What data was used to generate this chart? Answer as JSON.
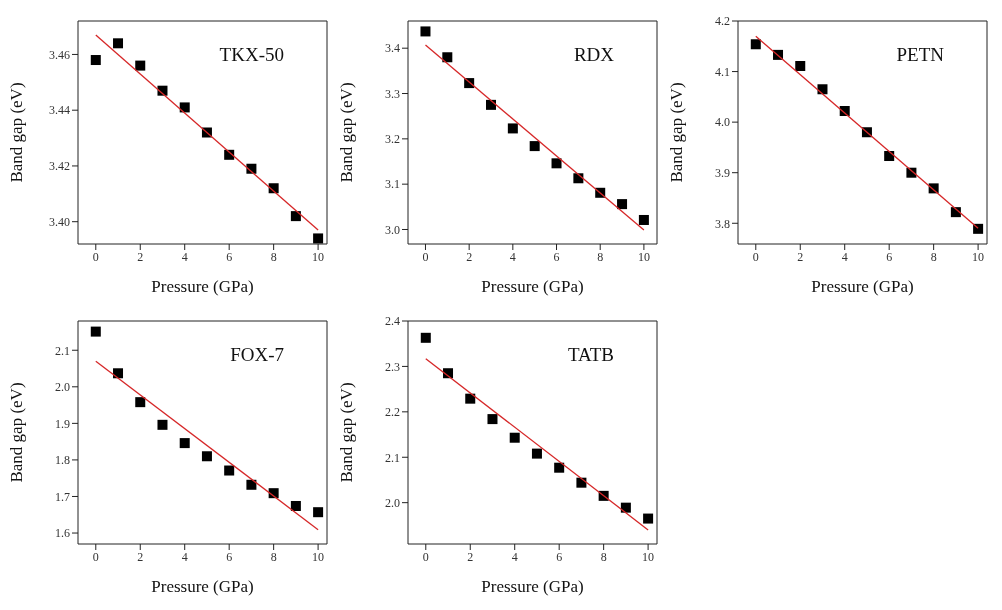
{
  "chart_data": [
    {
      "type": "scatter",
      "title": "TKX-50",
      "xlabel": "Pressure (GPa)",
      "ylabel": "Band gap (eV)",
      "xlim": [
        -0.8,
        10.4
      ],
      "xticks": [
        0,
        2,
        4,
        6,
        8,
        10
      ],
      "ylim": [
        3.392,
        3.472
      ],
      "yticks": [
        {
          "value": 3.4,
          "label": "3.40"
        },
        {
          "value": 3.42,
          "label": "3.42"
        },
        {
          "value": 3.44,
          "label": "3.44"
        },
        {
          "value": 3.46,
          "label": "3.46"
        }
      ],
      "series": [
        {
          "marker": "square",
          "color": "#000000",
          "x": [
            0,
            1,
            2,
            3,
            4,
            5,
            6,
            7,
            8,
            9,
            10
          ],
          "values": [
            3.458,
            3.464,
            3.456,
            3.447,
            3.441,
            3.432,
            3.424,
            3.419,
            3.412,
            3.402,
            3.394
          ]
        },
        {
          "type": "line",
          "color": "#d62728",
          "x": [
            0,
            10
          ],
          "values": [
            3.467,
            3.397
          ]
        }
      ]
    },
    {
      "type": "scatter",
      "title": "RDX",
      "xlabel": "Pressure (GPa)",
      "ylabel": "Band gap (eV)",
      "xlim": [
        -0.8,
        10.6
      ],
      "xticks": [
        0,
        2,
        4,
        6,
        8,
        10
      ],
      "ylim": [
        2.968,
        3.46
      ],
      "yticks": [
        {
          "value": 3.0,
          "label": "3.0"
        },
        {
          "value": 3.1,
          "label": "3.1"
        },
        {
          "value": 3.2,
          "label": "3.2"
        },
        {
          "value": 3.3,
          "label": "3.3"
        },
        {
          "value": 3.4,
          "label": "3.4"
        }
      ],
      "series": [
        {
          "marker": "square",
          "color": "#000000",
          "x": [
            0,
            1,
            2,
            3,
            4,
            5,
            6,
            7,
            8,
            9,
            10
          ],
          "values": [
            3.437,
            3.38,
            3.323,
            3.275,
            3.223,
            3.184,
            3.146,
            3.113,
            3.081,
            3.056,
            3.021
          ]
        },
        {
          "type": "line",
          "color": "#d62728",
          "x": [
            0,
            10
          ],
          "values": [
            3.407,
            2.999
          ]
        }
      ]
    },
    {
      "type": "scatter",
      "title": "PETN",
      "xlabel": "Pressure (GPa)",
      "ylabel": "Band gap (eV)",
      "xlim": [
        -0.8,
        10.4
      ],
      "xticks": [
        0,
        2,
        4,
        6,
        8,
        10
      ],
      "ylim": [
        3.759,
        4.2
      ],
      "yticks": [
        {
          "value": 3.8,
          "label": "3.8"
        },
        {
          "value": 3.9,
          "label": "3.9"
        },
        {
          "value": 4.0,
          "label": "4.0"
        },
        {
          "value": 4.1,
          "label": "4.1"
        },
        {
          "value": 4.2,
          "label": "4.2"
        }
      ],
      "series": [
        {
          "marker": "square",
          "color": "#000000",
          "x": [
            0,
            1,
            2,
            3,
            4,
            5,
            6,
            7,
            8,
            9,
            10
          ],
          "values": [
            4.154,
            4.133,
            4.111,
            4.065,
            4.022,
            3.98,
            3.933,
            3.9,
            3.869,
            3.822,
            3.789
          ]
        },
        {
          "type": "line",
          "color": "#d62728",
          "x": [
            0,
            10
          ],
          "values": [
            4.17,
            3.79
          ]
        }
      ]
    },
    {
      "type": "scatter",
      "title": "FOX-7",
      "xlabel": "Pressure (GPa)",
      "ylabel": "Band gap (eV)",
      "xlim": [
        -0.8,
        10.4
      ],
      "xticks": [
        0,
        2,
        4,
        6,
        8,
        10
      ],
      "ylim": [
        1.57,
        2.18
      ],
      "yticks": [
        {
          "value": 1.6,
          "label": "1.6"
        },
        {
          "value": 1.7,
          "label": "1.7"
        },
        {
          "value": 1.8,
          "label": "1.8"
        },
        {
          "value": 1.9,
          "label": "1.9"
        },
        {
          "value": 2.0,
          "label": "2.0"
        },
        {
          "value": 2.1,
          "label": "2.1"
        }
      ],
      "series": [
        {
          "marker": "square",
          "color": "#000000",
          "x": [
            0,
            1,
            2,
            3,
            4,
            5,
            6,
            7,
            8,
            9,
            10
          ],
          "values": [
            2.151,
            2.037,
            1.958,
            1.896,
            1.846,
            1.81,
            1.771,
            1.732,
            1.709,
            1.674,
            1.657
          ]
        },
        {
          "type": "line",
          "color": "#d62728",
          "x": [
            0,
            10
          ],
          "values": [
            2.07,
            1.609
          ]
        }
      ]
    },
    {
      "type": "scatter",
      "title": "TATB",
      "xlabel": "Pressure (GPa)",
      "ylabel": "Band gap (eV)",
      "xlim": [
        -0.8,
        10.4
      ],
      "xticks": [
        0,
        2,
        4,
        6,
        8,
        10
      ],
      "ylim": [
        1.909,
        2.4
      ],
      "yticks": [
        {
          "value": 2.0,
          "label": "2.0"
        },
        {
          "value": 2.1,
          "label": "2.1"
        },
        {
          "value": 2.2,
          "label": "2.2"
        },
        {
          "value": 2.3,
          "label": "2.3"
        },
        {
          "value": 2.4,
          "label": "2.4"
        }
      ],
      "series": [
        {
          "marker": "square",
          "color": "#000000",
          "x": [
            0,
            1,
            2,
            3,
            4,
            5,
            6,
            7,
            8,
            9,
            10
          ],
          "values": [
            2.363,
            2.285,
            2.229,
            2.184,
            2.143,
            2.108,
            2.077,
            2.044,
            2.015,
            1.989,
            1.965
          ]
        },
        {
          "type": "line",
          "color": "#d62728",
          "x": [
            0,
            10
          ],
          "values": [
            2.317,
            1.94
          ]
        }
      ]
    }
  ]
}
